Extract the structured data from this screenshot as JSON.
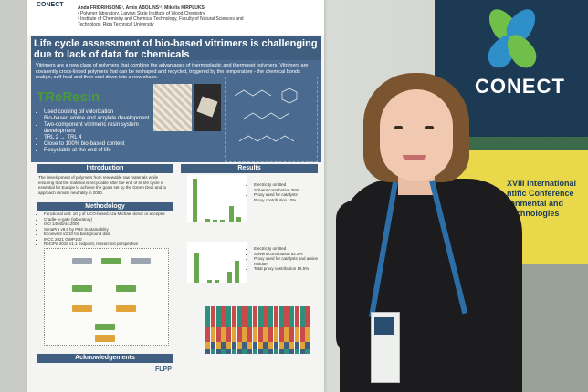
{
  "poster": {
    "logo_small": "CONECT",
    "authors": "Anda FRIDRIHSONE¹, Arnis ABOLINS¹², Mikelis KIRPLUKS¹",
    "affiliation_1": "¹ Polymer laboratory, Latvian State Institute of Wood Chemistry",
    "affiliation_2": "² Institute of Chemistry and Chemical Technology, Faculty of Natural Sciences and Technology, Riga Technical University",
    "title": "Life cycle assessment of bio-based vitrimers is challenging due to lack of data for chemicals",
    "intro_text": "Vitrimers are a new class of polymers that combine the advantages of thermoplastic and thermoset polymers. Vitrimers are covalently cross-linked polymers that can be reshaped and recycled, triggered by the temperature - the chemical bonds realign, self-heal and then cool down into a new shape.",
    "project_logo": "TReResin",
    "bullets": [
      "Used cooking oil valorization",
      "Bio-based amine and acrylate development",
      "Two-component vitrimeric resin system development",
      "TRL 2 → TRL 4",
      "Close to 100% bio-based content",
      "Recyclable at the end of life"
    ],
    "introduction_head": "Introduction",
    "introduction_text": "The development of polymers from renewable raw materials while ensuring that the material is recyclable after the end of its life cycle is essential for Europe to achieve the goals set by the Green Deal and to approach climate neutrality in 2050.",
    "methodology_head": "Methodology",
    "methodology_items": [
      "Functional unit: 10 g of UCO-based Aza-Michael donor or acceptor",
      "Cradle-to-gate (laboratory)",
      "ISO 14040/44:2006",
      "SimaPro v9.6 by PRé Sustainability",
      "Ecoinvent v3.10 for background data",
      "IPCC 2021 GWP100",
      "ReCiPe 2016 v1.1 midpoint, Hierarchist perspective"
    ],
    "results_head": "Results",
    "results_notes_1": [
      "Electricity omitted",
      "Solvent contribution 36%",
      "Proxy used for catalysts",
      "Proxy contribution 10%"
    ],
    "results_notes_2": [
      "Electricity omitted",
      "Solvent contribution 52.3%",
      "Proxy used for catalysts and amine residue",
      "Total proxy contribution 18.5%"
    ],
    "ack_head": "Acknowledgements",
    "ack_logo": "FLPP"
  },
  "banner": {
    "brand": "CONECT",
    "conference_line1": "XVIII International",
    "conference_line2": "ntific Conference",
    "conference_line3": "ronmental and",
    "conference_line4": "Technologies"
  },
  "colors": {
    "poster_blue": "#3f5e80",
    "banner_navy": "#1d3a55",
    "banner_yellow": "#e9d94a",
    "leaf_green": "#6fbf4a",
    "leaf_blue": "#2f8fc9"
  }
}
